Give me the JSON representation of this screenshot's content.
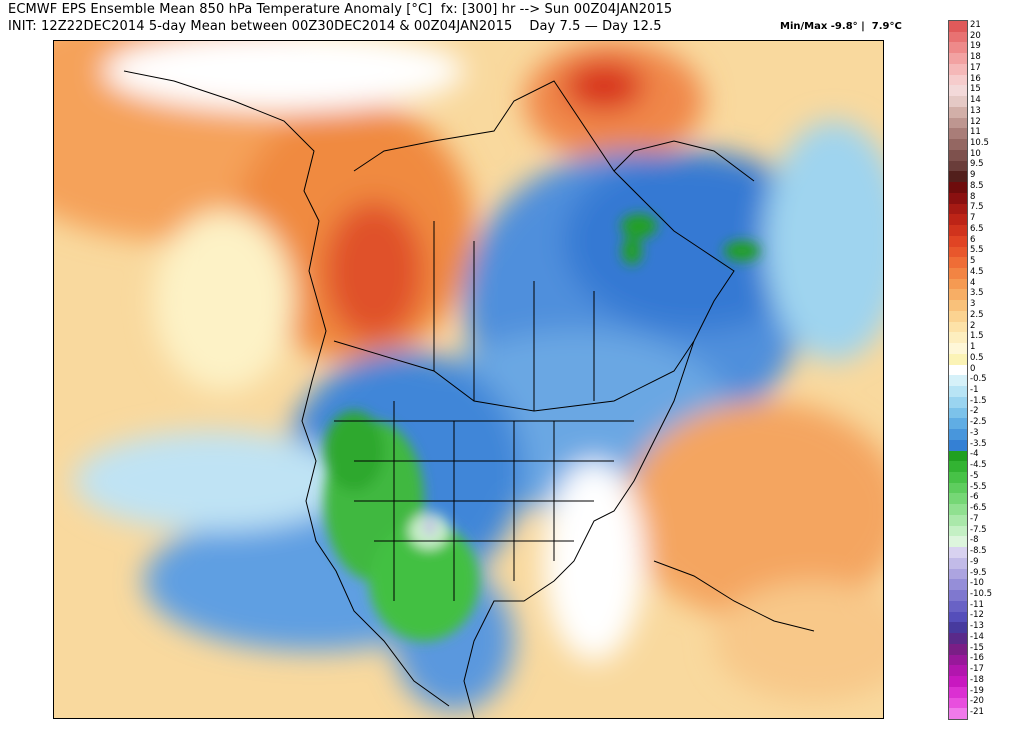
{
  "header": {
    "line1": "ECMWF EPS Ensemble Mean 850 hPa Temperature Anomaly [°C]  fx: [300] hr --> Sun 00Z04JAN2015",
    "line2": "INIT: 12Z22DEC2014 5-day Mean between 00Z30DEC2014 & 00Z04JAN2015    Day 7.5 — Day 12.5",
    "minmax": "Min/Max -9.8° |  7.9°C"
  },
  "colorbar": {
    "labels": [
      "21",
      "20",
      "19",
      "18",
      "17",
      "16",
      "15",
      "14",
      "13",
      "12",
      "11",
      "10.5",
      "10",
      "9.5",
      "9",
      "8.5",
      "8",
      "7.5",
      "7",
      "6.5",
      "6",
      "5.5",
      "5",
      "4.5",
      "4",
      "3.5",
      "3",
      "2.5",
      "2",
      "1.5",
      "1",
      "0.5",
      "0",
      "-0.5",
      "-1",
      "-1.5",
      "-2",
      "-2.5",
      "-3",
      "-3.5",
      "-4",
      "-4.5",
      "-5",
      "-5.5",
      "-6",
      "-6.5",
      "-7",
      "-7.5",
      "-8",
      "-8.5",
      "-9",
      "-9.5",
      "-10",
      "-10.5",
      "-11",
      "-12",
      "-13",
      "-14",
      "-15",
      "-16",
      "-17",
      "-18",
      "-19",
      "-20",
      "-21"
    ],
    "colors": [
      "#e05a5a",
      "#e87272",
      "#ee8a8a",
      "#f2a2a2",
      "#f5b8b8",
      "#f6cccc",
      "#f3d9d9",
      "#e5c9c5",
      "#d2afa8",
      "#be9690",
      "#a97d78",
      "#946762",
      "#7e514d",
      "#6a3d3a",
      "#521f1c",
      "#6e0c0c",
      "#8a1010",
      "#a61a14",
      "#bd2417",
      "#d0331d",
      "#e04424",
      "#e8572c",
      "#ef6d36",
      "#f28443",
      "#f59a52",
      "#f7ae65",
      "#f9c17a",
      "#fbd391",
      "#fde2a8",
      "#fdeebf",
      "#fef7d8",
      "#fbf3b6",
      "#ffffff",
      "#d6f1f9",
      "#b8e4f5",
      "#9ad4f0",
      "#7cc2ea",
      "#60ade4",
      "#4896dc",
      "#3480d4",
      "#20a020",
      "#32b332",
      "#47c247",
      "#5ecd5e",
      "#76d776",
      "#90e090",
      "#aae8aa",
      "#c4f0c4",
      "#ddf5dd",
      "#d8d2f0",
      "#c2bbe8",
      "#aca4e0",
      "#958ed8",
      "#7f78cf",
      "#6962c5",
      "#554eba",
      "#473a9e",
      "#5a2a8a",
      "#7a1e86",
      "#98189a",
      "#b216ae",
      "#c818c0",
      "#db30d2",
      "#e84fde",
      "#f07aea"
    ]
  },
  "map": {
    "region": "North America",
    "legend_units": "°C"
  }
}
